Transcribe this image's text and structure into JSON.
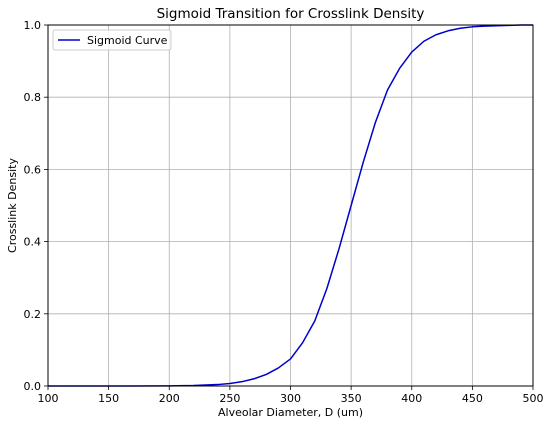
{
  "chart_data": {
    "type": "line",
    "title": "Sigmoid Transition for Crosslink Density",
    "xlabel": "Alveolar Diameter, D (um)",
    "ylabel": "Crosslink Density",
    "xlim": [
      100,
      500
    ],
    "ylim": [
      0.0,
      1.0
    ],
    "xticks": [
      100,
      150,
      200,
      250,
      300,
      350,
      400,
      450,
      500
    ],
    "xtick_labels": [
      "100",
      "150",
      "200",
      "250",
      "300",
      "350",
      "400",
      "450",
      "500"
    ],
    "yticks": [
      0.0,
      0.2,
      0.4,
      0.6,
      0.8,
      1.0
    ],
    "ytick_labels": [
      "0.0",
      "0.2",
      "0.4",
      "0.6",
      "0.8",
      "1.0"
    ],
    "grid": true,
    "legend_position": "top-left",
    "series": [
      {
        "name": "Sigmoid Curve",
        "color": "#0000cc",
        "x": [
          100,
          150,
          200,
          220,
          240,
          250,
          260,
          270,
          280,
          290,
          300,
          310,
          320,
          330,
          340,
          350,
          360,
          370,
          380,
          390,
          400,
          410,
          420,
          430,
          440,
          450,
          460,
          470,
          480,
          490,
          500
        ],
        "y": [
          0.0,
          0.0,
          0.0005,
          0.0015,
          0.004,
          0.007,
          0.012,
          0.02,
          0.032,
          0.05,
          0.075,
          0.12,
          0.18,
          0.27,
          0.38,
          0.5,
          0.62,
          0.73,
          0.82,
          0.88,
          0.925,
          0.955,
          0.973,
          0.984,
          0.991,
          0.995,
          0.997,
          0.998,
          0.999,
          1.0,
          1.0
        ]
      }
    ]
  }
}
